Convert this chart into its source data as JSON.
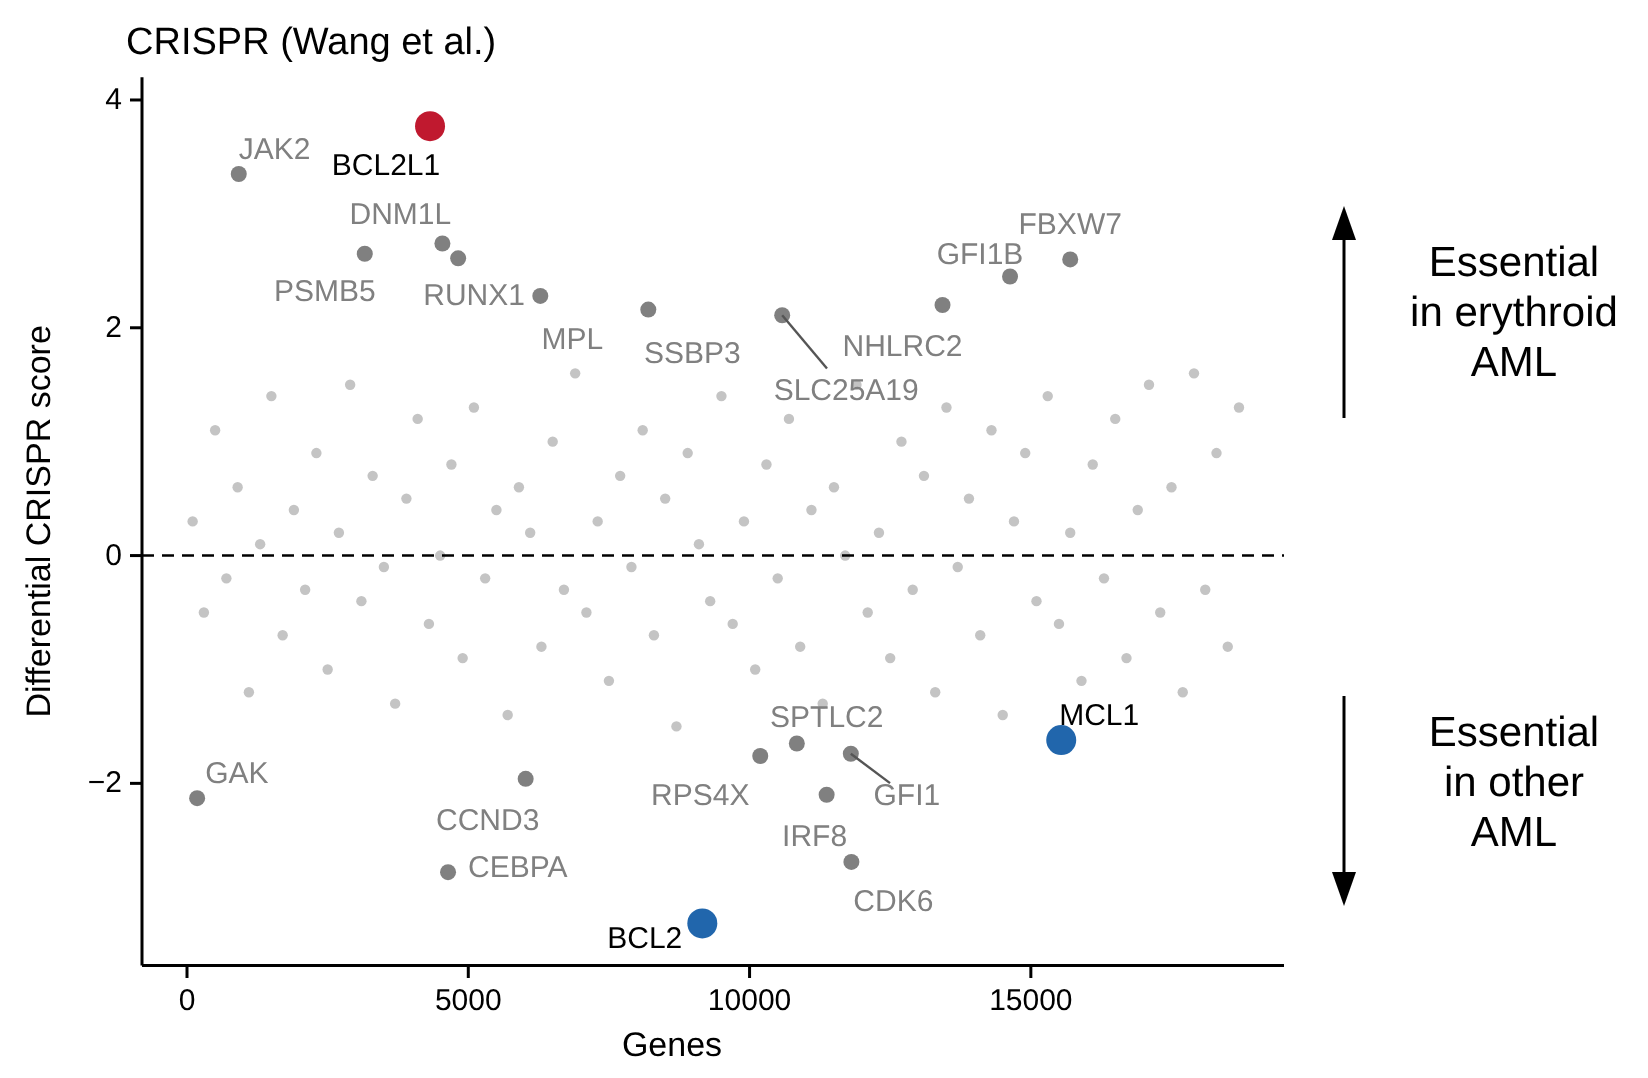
{
  "chart_data": {
    "type": "scatter",
    "title": "CRISPR (Wang et al.)",
    "xlabel": "Genes",
    "ylabel": "Differential CRISPR score",
    "xlim": [
      -800,
      19500
    ],
    "ylim": [
      -3.6,
      4.2
    ],
    "xticks": [
      0,
      5000,
      10000,
      15000
    ],
    "yticks": [
      {
        "value": -2,
        "label": "−2"
      },
      0,
      2,
      4
    ],
    "grid": false,
    "marker": "circle",
    "ref_lines": [
      {
        "axis": "y",
        "value": 0,
        "color": "#000000",
        "line_style": "dashed"
      }
    ],
    "series": [
      {
        "color": "#c4c4c4",
        "x": [
          100,
          300,
          500,
          700,
          900,
          1100,
          1300,
          1500,
          1700,
          1900,
          2100,
          2300,
          2500,
          2700,
          2900,
          3100,
          3300,
          3500,
          3700,
          3900,
          4100,
          4300,
          4500,
          4700,
          4900,
          5100,
          5300,
          5500,
          5700,
          5900,
          6100,
          6300,
          6500,
          6700,
          6900,
          7100,
          7300,
          7500,
          7700,
          7900,
          8100,
          8300,
          8500,
          8700,
          8900,
          9100,
          9300,
          9500,
          9700,
          9900,
          10100,
          10300,
          10500,
          10700,
          10900,
          11100,
          11300,
          11500,
          11700,
          11900,
          12100,
          12300,
          12500,
          12700,
          12900,
          13100,
          13300,
          13500,
          13700,
          13900,
          14100,
          14300,
          14500,
          14700,
          14900,
          15100,
          15300,
          15500,
          15700,
          15900,
          16100,
          16300,
          16500,
          16700,
          16900,
          17100,
          17300,
          17500,
          17700,
          17900,
          18100,
          18300,
          18500,
          18700
        ],
        "values": [
          0.3,
          -0.5,
          1.1,
          -0.2,
          0.6,
          -1.2,
          0.1,
          1.4,
          -0.7,
          0.4,
          -0.3,
          0.9,
          -1.0,
          0.2,
          1.5,
          -0.4,
          0.7,
          -0.1,
          -1.3,
          0.5,
          1.2,
          -0.6,
          0.0,
          0.8,
          -0.9,
          1.3,
          -0.2,
          0.4,
          -1.4,
          0.6,
          0.2,
          -0.8,
          1.0,
          -0.3,
          1.6,
          -0.5,
          0.3,
          -1.1,
          0.7,
          -0.1,
          1.1,
          -0.7,
          0.5,
          -1.5,
          0.9,
          0.1,
          -0.4,
          1.4,
          -0.6,
          0.3,
          -1.0,
          0.8,
          -0.2,
          1.2,
          -0.8,
          0.4,
          -1.3,
          0.6,
          0.0,
          1.5,
          -0.5,
          0.2,
          -0.9,
          1.0,
          -0.3,
          0.7,
          -1.2,
          1.3,
          -0.1,
          0.5,
          -0.7,
          1.1,
          -1.4,
          0.3,
          0.9,
          -0.4,
          1.4,
          -0.6,
          0.2,
          -1.1,
          0.8,
          -0.2,
          1.2,
          -0.9,
          0.4,
          1.5,
          -0.5,
          0.6,
          -1.2,
          1.6,
          -0.3,
          0.9,
          -0.8,
          1.3
        ]
      },
      {
        "color": "#808080",
        "x": [
          920,
          4540,
          3160,
          4820,
          6280,
          8200,
          10580,
          13430,
          14630,
          15700,
          180,
          6020,
          4640,
          10190,
          10840,
          11800,
          11370,
          11810
        ],
        "values": [
          3.35,
          2.74,
          2.65,
          2.61,
          2.28,
          2.16,
          2.11,
          2.2,
          2.45,
          2.6,
          -2.13,
          -1.96,
          -2.78,
          -1.76,
          -1.65,
          -1.74,
          -2.1,
          -2.69
        ]
      },
      {
        "color": "#c0192f",
        "x": [
          4320
        ],
        "values": [
          3.77
        ]
      },
      {
        "color": "#2166ac",
        "x": [
          9160,
          15540
        ],
        "values": [
          -3.23,
          -1.62
        ]
      }
    ],
    "annotations": [
      {
        "text": "BCL2L1",
        "x": 4320,
        "y": 3.77
      },
      {
        "text": "JAK2",
        "x": 920,
        "y": 3.35
      },
      {
        "text": "DNM1L",
        "x": 4540,
        "y": 2.74
      },
      {
        "text": "PSMB5",
        "x": 3160,
        "y": 2.65
      },
      {
        "text": "RUNX1",
        "x": 4820,
        "y": 2.61
      },
      {
        "text": "MPL",
        "x": 6280,
        "y": 2.28
      },
      {
        "text": "SSBP3",
        "x": 8200,
        "y": 2.16
      },
      {
        "text": "SLC25A19",
        "x": 10580,
        "y": 2.11
      },
      {
        "text": "NHLRC2",
        "x": 13430,
        "y": 2.2
      },
      {
        "text": "GFI1B",
        "x": 14630,
        "y": 2.45
      },
      {
        "text": "FBXW7",
        "x": 15700,
        "y": 2.6
      },
      {
        "text": "GAK",
        "x": 180,
        "y": -2.13
      },
      {
        "text": "CCND3",
        "x": 6020,
        "y": -1.96
      },
      {
        "text": "CEBPA",
        "x": 4640,
        "y": -2.78
      },
      {
        "text": "BCL2",
        "x": 9160,
        "y": -3.23
      },
      {
        "text": "RPS4X",
        "x": 10190,
        "y": -1.76
      },
      {
        "text": "SPTLC2",
        "x": 10840,
        "y": -1.65
      },
      {
        "text": "GFI1",
        "x": 11800,
        "y": -1.74
      },
      {
        "text": "IRF8",
        "x": 11370,
        "y": -2.1
      },
      {
        "text": "CDK6",
        "x": 11810,
        "y": -2.69
      },
      {
        "text": "MCL1",
        "x": 15540,
        "y": -1.62
      },
      "Essential\nin erythroid\nAML",
      "Essential\nin other\nAML"
    ]
  }
}
